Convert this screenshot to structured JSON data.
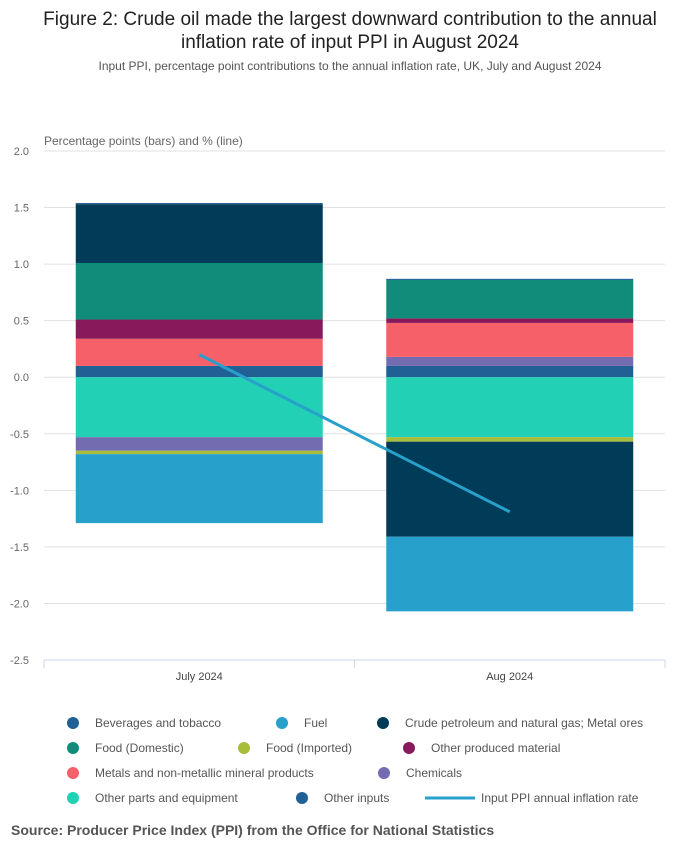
{
  "title_line1": "Figure 2: Crude oil made the largest downward contribution to the annual",
  "title_line2": "inflation rate of input PPI in August 2024",
  "subtitle": "Input PPI, percentage point contributions to the annual inflation rate, UK, July and August 2024",
  "source": "Source: Producer Price Index (PPI) from the Office for National Statistics",
  "chart_data": {
    "type": "bar",
    "stacked": true,
    "ylabel": "Percentage points (bars) and % (line)",
    "ylim": [
      -2.5,
      2.0
    ],
    "yticks": [
      "2.0",
      "1.5",
      "1.0",
      "0.5",
      "0.0",
      "-0.5",
      "-1.0",
      "-1.5",
      "-2.0",
      "-2.5"
    ],
    "grid": true,
    "legend_placement": "bottom",
    "categories": [
      "July 2024",
      "Aug 2024"
    ],
    "series": [
      {
        "name": "Beverages and tobacco",
        "color": "#206095",
        "values": [
          0.1,
          0.1
        ]
      },
      {
        "name": "Fuel",
        "color": "#27a0cc",
        "values": [
          -0.61,
          -0.66
        ]
      },
      {
        "name": "Crude petroleum and natural gas; Metal ores",
        "color": "#003c57",
        "values": [
          0.52,
          -0.84
        ]
      },
      {
        "name": "Food (Domestic)",
        "color": "#118c7b",
        "values": [
          0.5,
          0.34
        ]
      },
      {
        "name": "Food (Imported)",
        "color": "#a8bd3a",
        "values": [
          -0.03,
          -0.04
        ]
      },
      {
        "name": "Other produced material",
        "color": "#871a5b",
        "values": [
          0.17,
          0.04
        ]
      },
      {
        "name": "Metals and non-metallic mineral products",
        "color": "#f66068",
        "values": [
          0.24,
          0.3
        ]
      },
      {
        "name": "Chemicals",
        "color": "#746cb1",
        "values": [
          -0.12,
          0.08
        ]
      },
      {
        "name": "Other parts and equipment",
        "color": "#22d0b6",
        "values": [
          -0.53,
          -0.53
        ]
      },
      {
        "name": "Other inputs",
        "color": "#206095",
        "values": [
          0.01,
          0.01
        ]
      }
    ],
    "line": {
      "name": "Input PPI annual inflation rate",
      "type": "line",
      "color": "#27a0cc",
      "values": [
        0.2,
        -1.19
      ]
    }
  }
}
